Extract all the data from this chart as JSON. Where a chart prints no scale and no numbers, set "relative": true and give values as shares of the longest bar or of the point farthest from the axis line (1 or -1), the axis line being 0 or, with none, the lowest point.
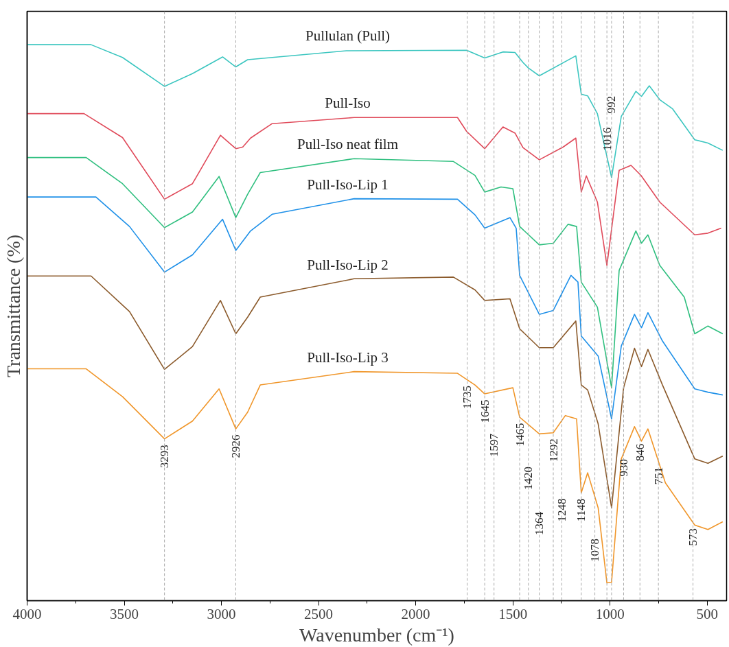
{
  "chart_data": {
    "type": "line",
    "relative": true,
    "xlabel": "Wavenumber (cm⁻¹)",
    "ylabel": "Transmittance (%)",
    "xlim": [
      4000,
      400
    ],
    "grid": false,
    "xticks": [
      4000,
      {
        "value": 3750,
        "label": null
      },
      3500,
      {
        "value": 3250,
        "label": null
      },
      3000,
      {
        "value": 2750,
        "label": null
      },
      2500,
      {
        "value": 2250,
        "label": null
      },
      2000,
      {
        "value": 1750,
        "label": null
      },
      1500,
      {
        "value": 1250,
        "label": null
      },
      1000,
      {
        "value": 750,
        "label": null
      },
      500
    ],
    "series": [
      {
        "name": "Pullulan (Pull)",
        "color": "#3cc6c0",
        "x": [
          4000,
          3671,
          3509,
          3293,
          3149,
          2994,
          2926,
          2865,
          2357,
          1738,
          1645,
          1551,
          1489,
          1448,
          1420,
          1364,
          1176,
          1148,
          1115,
          1065,
          992,
          942,
          867,
          838,
          798,
          744,
          679,
          564,
          496,
          420
        ],
        "values": [
          1.0,
          1.0,
          0.977,
          0.925,
          0.948,
          0.978,
          0.96,
          0.973,
          0.989,
          0.99,
          0.976,
          0.987,
          0.986,
          0.968,
          0.958,
          0.944,
          0.98,
          0.911,
          0.908,
          0.876,
          0.761,
          0.871,
          0.916,
          0.907,
          0.926,
          0.901,
          0.885,
          0.829,
          0.823,
          0.81
        ]
      },
      {
        "name": "Pull-Iso",
        "color": "#e04a5a",
        "x": [
          4000,
          3707,
          3509,
          3293,
          3149,
          3005,
          2926,
          2890,
          2850,
          2739,
          2317,
          1785,
          1738,
          1645,
          1551,
          1489,
          1448,
          1364,
          1241,
          1176,
          1148,
          1122,
          1065,
          1016,
          953,
          892,
          841,
          744,
          564,
          496,
          428
        ],
        "values": [
          0.876,
          0.876,
          0.833,
          0.722,
          0.75,
          0.837,
          0.813,
          0.816,
          0.832,
          0.858,
          0.869,
          0.869,
          0.844,
          0.813,
          0.852,
          0.841,
          0.815,
          0.793,
          0.816,
          0.832,
          0.735,
          0.764,
          0.717,
          0.603,
          0.774,
          0.783,
          0.765,
          0.717,
          0.658,
          0.661,
          0.67
        ]
      },
      {
        "name": "Pull-Iso neat film",
        "color": "#2fbf7f",
        "x": [
          4000,
          3696,
          3509,
          3293,
          3149,
          3012,
          2926,
          2865,
          2800,
          2317,
          1806,
          1695,
          1645,
          1561,
          1500,
          1465,
          1364,
          1292,
          1216,
          1172,
          1148,
          1065,
          992,
          953,
          867,
          838,
          805,
          744,
          618,
          564,
          496,
          420
        ],
        "values": [
          0.797,
          0.797,
          0.75,
          0.671,
          0.699,
          0.763,
          0.689,
          0.731,
          0.77,
          0.795,
          0.79,
          0.765,
          0.735,
          0.744,
          0.741,
          0.673,
          0.64,
          0.643,
          0.677,
          0.673,
          0.573,
          0.528,
          0.383,
          0.594,
          0.665,
          0.643,
          0.658,
          0.603,
          0.546,
          0.48,
          0.494,
          0.48
        ]
      },
      {
        "name": "Pull-Iso-Lip 1",
        "color": "#1e90e8",
        "x": [
          4000,
          3646,
          3473,
          3293,
          3149,
          2994,
          2926,
          2850,
          2739,
          2317,
          1785,
          1695,
          1645,
          1515,
          1483,
          1465,
          1364,
          1292,
          1201,
          1165,
          1148,
          1061,
          992,
          942,
          874,
          838,
          805,
          730,
          564,
          496,
          420
        ],
        "values": [
          0.726,
          0.726,
          0.673,
          0.591,
          0.622,
          0.686,
          0.63,
          0.665,
          0.695,
          0.723,
          0.722,
          0.694,
          0.67,
          0.689,
          0.67,
          0.585,
          0.515,
          0.522,
          0.585,
          0.573,
          0.476,
          0.44,
          0.327,
          0.458,
          0.515,
          0.491,
          0.518,
          0.467,
          0.381,
          0.375,
          0.37
        ]
      },
      {
        "name": "Pull-Iso-Lip 2",
        "color": "#8b5a2b",
        "x": [
          4000,
          3671,
          3473,
          3293,
          3149,
          3005,
          2926,
          2865,
          2800,
          2317,
          1806,
          1695,
          1645,
          1515,
          1465,
          1364,
          1292,
          1176,
          1148,
          1115,
          1061,
          992,
          930,
          874,
          838,
          805,
          730,
          564,
          496,
          420
        ],
        "values": [
          0.584,
          0.584,
          0.52,
          0.416,
          0.457,
          0.54,
          0.48,
          0.51,
          0.546,
          0.579,
          0.582,
          0.559,
          0.54,
          0.543,
          0.489,
          0.455,
          0.455,
          0.503,
          0.388,
          0.379,
          0.318,
          0.167,
          0.383,
          0.454,
          0.421,
          0.452,
          0.388,
          0.255,
          0.247,
          0.26
        ]
      },
      {
        "name": "Pull-Iso-Lip 3",
        "color": "#f0962a",
        "x": [
          4000,
          3696,
          3509,
          3293,
          3149,
          3012,
          2926,
          2865,
          2800,
          2317,
          1785,
          1695,
          1645,
          1500,
          1465,
          1364,
          1292,
          1230,
          1172,
          1148,
          1115,
          1061,
          1016,
          992,
          942,
          874,
          838,
          805,
          715,
          564,
          496,
          420
        ],
        "values": [
          0.417,
          0.417,
          0.367,
          0.291,
          0.323,
          0.381,
          0.309,
          0.339,
          0.388,
          0.412,
          0.409,
          0.388,
          0.372,
          0.383,
          0.33,
          0.3,
          0.302,
          0.333,
          0.327,
          0.194,
          0.23,
          0.167,
          0.032,
          0.033,
          0.255,
          0.313,
          0.287,
          0.309,
          0.212,
          0.136,
          0.128,
          0.142
        ]
      }
    ],
    "ref_lines": [
      {
        "axis": "x",
        "value": 3293,
        "label": "3293",
        "color": "#aaaaaa",
        "line_style": "dashed"
      },
      {
        "axis": "x",
        "value": 2926,
        "label": "2926",
        "color": "#aaaaaa",
        "line_style": "dashed"
      },
      {
        "axis": "x",
        "value": 1735,
        "label": "1735",
        "color": "#aaaaaa",
        "line_style": "dashed"
      },
      {
        "axis": "x",
        "value": 1645,
        "label": "1645",
        "color": "#aaaaaa",
        "line_style": "dashed"
      },
      {
        "axis": "x",
        "value": 1597,
        "label": "1597",
        "color": "#aaaaaa",
        "line_style": "dashed"
      },
      {
        "axis": "x",
        "value": 1465,
        "label": "1465",
        "color": "#aaaaaa",
        "line_style": "dashed"
      },
      {
        "axis": "x",
        "value": 1420,
        "label": "1420",
        "color": "#aaaaaa",
        "line_style": "dashed"
      },
      {
        "axis": "x",
        "value": 1364,
        "label": "1364",
        "color": "#aaaaaa",
        "line_style": "dashed"
      },
      {
        "axis": "x",
        "value": 1292,
        "label": "1292",
        "color": "#aaaaaa",
        "line_style": "dashed"
      },
      {
        "axis": "x",
        "value": 1248,
        "label": "1248",
        "color": "#aaaaaa",
        "line_style": "dashed"
      },
      {
        "axis": "x",
        "value": 1148,
        "label": "1148",
        "color": "#aaaaaa",
        "line_style": "dashed"
      },
      {
        "axis": "x",
        "value": 1078,
        "label": "1078",
        "color": "#aaaaaa",
        "line_style": "dashed"
      },
      {
        "axis": "x",
        "value": 1016,
        "label": "1016",
        "color": "#aaaaaa",
        "line_style": "dashed"
      },
      {
        "axis": "x",
        "value": 992,
        "label": "992",
        "color": "#aaaaaa",
        "line_style": "dashed"
      },
      {
        "axis": "x",
        "value": 930,
        "label": "930",
        "color": "#aaaaaa",
        "line_style": "dashed"
      },
      {
        "axis": "x",
        "value": 846,
        "label": "846",
        "color": "#aaaaaa",
        "line_style": "dashed"
      },
      {
        "axis": "x",
        "value": 751,
        "label": "751",
        "color": "#aaaaaa",
        "line_style": "dashed"
      },
      {
        "axis": "x",
        "value": 573,
        "label": "573",
        "color": "#aaaaaa",
        "line_style": "dashed"
      }
    ]
  }
}
